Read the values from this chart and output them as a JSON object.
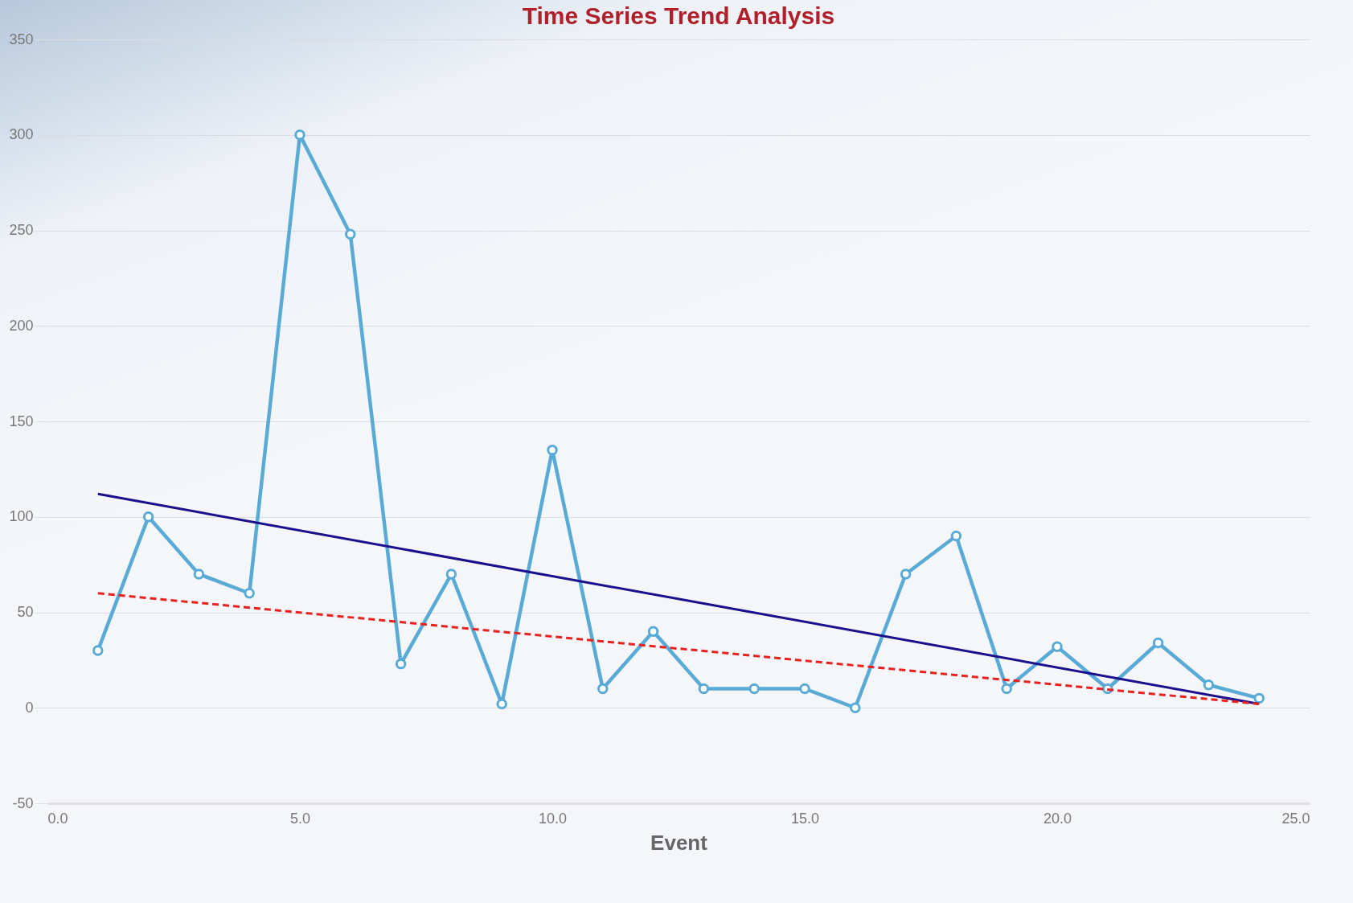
{
  "chart_data": {
    "type": "line",
    "title": "Time Series Trend Analysis",
    "xlabel": "Event",
    "x": [
      1,
      2,
      3,
      4,
      5,
      6,
      7,
      8,
      9,
      10,
      11,
      12,
      13,
      14,
      15,
      16,
      17,
      18,
      19,
      20,
      21,
      22,
      23,
      24
    ],
    "series": [
      {
        "color": "#5aaad6",
        "values": [
          30,
          100,
          70,
          60,
          300,
          248,
          23,
          70,
          2,
          135,
          10,
          40,
          10,
          10,
          10,
          0,
          70,
          90,
          10,
          32,
          10,
          34,
          12,
          5
        ],
        "marker": "circle",
        "line_style": "solid"
      },
      {
        "type": "line",
        "color": "#1a0f8c",
        "values": [
          112,
          null,
          null,
          null,
          null,
          null,
          null,
          null,
          null,
          null,
          null,
          null,
          null,
          null,
          null,
          null,
          null,
          null,
          null,
          null,
          null,
          null,
          null,
          2
        ],
        "marker": "none",
        "line_style": "solid"
      },
      {
        "type": "line",
        "color": "#e8201e",
        "values": [
          60,
          null,
          null,
          null,
          null,
          null,
          null,
          null,
          null,
          null,
          null,
          null,
          null,
          null,
          null,
          null,
          null,
          null,
          null,
          null,
          null,
          null,
          null,
          2
        ],
        "marker": "none",
        "line_style": "dashed"
      }
    ],
    "xlim": [
      0,
      25
    ],
    "xticks": [
      {
        "value": 0,
        "label": "0.0"
      },
      {
        "value": 5,
        "label": "5.0"
      },
      {
        "value": 10,
        "label": "10.0"
      },
      {
        "value": 15,
        "label": "15.0"
      },
      {
        "value": 20,
        "label": "20.0"
      },
      {
        "value": 25,
        "label": "25.0"
      }
    ],
    "ylim": [
      -50,
      350
    ],
    "yticks": [
      -50,
      0,
      50,
      100,
      150,
      200,
      250,
      300,
      350
    ],
    "grid": "y"
  }
}
